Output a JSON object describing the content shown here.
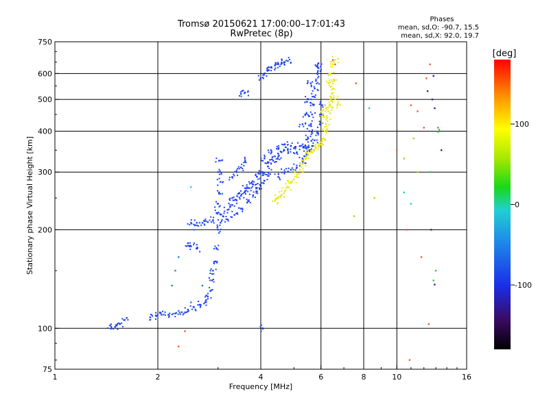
{
  "chart_data": {
    "type": "scatter",
    "title": "Tromsø 20150621 17:00:00–17:01:43",
    "subtitle": "RwPretec (8p)",
    "xlabel": "Frequency [MHz]",
    "ylabel": "Stationary phase Virtual Height [km]",
    "x_scale": "log",
    "y_scale": "log",
    "xlim": [
      1,
      16
    ],
    "ylim": [
      75,
      750
    ],
    "x_ticks": [
      1,
      2,
      4,
      6,
      8,
      10,
      16
    ],
    "y_ticks": [
      75,
      100,
      200,
      300,
      400,
      500,
      600,
      750
    ],
    "grid": true,
    "stats": {
      "heading": "Phases",
      "line_o": "mean, sd,O: -90.7, 15.5",
      "line_x": "mean, sd,X:  92.0, 19.7"
    },
    "colorbar": {
      "label": "[deg]",
      "range": [
        -180,
        180
      ],
      "ticks": [
        100,
        0,
        -100
      ]
    },
    "series": [
      {
        "phase_deg": -95,
        "color": "#1a3df0",
        "points": [
          [
            1.45,
            102
          ],
          [
            1.5,
            101
          ],
          [
            1.55,
            103
          ],
          [
            1.6,
            106
          ],
          [
            1.9,
            108
          ],
          [
            1.98,
            109
          ],
          [
            2.05,
            110
          ],
          [
            2.15,
            110
          ],
          [
            2.25,
            111
          ],
          [
            2.35,
            112
          ],
          [
            2.45,
            114
          ],
          [
            2.55,
            116
          ],
          [
            2.65,
            118
          ],
          [
            2.75,
            120
          ],
          [
            2.8,
            125
          ],
          [
            2.85,
            130
          ],
          [
            2.88,
            140
          ],
          [
            2.9,
            150
          ],
          [
            2.95,
            160
          ],
          [
            2.97,
            175
          ],
          [
            2.6,
            175
          ],
          [
            2.5,
            178
          ],
          [
            2.45,
            182
          ],
          [
            2.5,
            210
          ],
          [
            2.6,
            210
          ],
          [
            2.7,
            210
          ],
          [
            2.8,
            211
          ],
          [
            2.9,
            214
          ],
          [
            2.97,
            225
          ],
          [
            3.0,
            240
          ],
          [
            3.02,
            260
          ],
          [
            3.05,
            280
          ],
          [
            3.0,
            300
          ],
          [
            3.02,
            325
          ],
          [
            3.0,
            200
          ],
          [
            3.05,
            210
          ],
          [
            3.1,
            220
          ],
          [
            3.2,
            230
          ],
          [
            3.3,
            238
          ],
          [
            3.4,
            246
          ],
          [
            3.5,
            254
          ],
          [
            3.6,
            262
          ],
          [
            3.7,
            268
          ],
          [
            3.8,
            275
          ],
          [
            3.2,
            215
          ],
          [
            3.35,
            222
          ],
          [
            3.5,
            232
          ],
          [
            3.65,
            242
          ],
          [
            3.8,
            255
          ],
          [
            3.9,
            262
          ],
          [
            4.0,
            272
          ],
          [
            4.1,
            282
          ],
          [
            4.2,
            292
          ],
          [
            3.3,
            250
          ],
          [
            3.45,
            258
          ],
          [
            3.6,
            268
          ],
          [
            3.75,
            278
          ],
          [
            3.9,
            290
          ],
          [
            4.05,
            300
          ],
          [
            4.2,
            312
          ],
          [
            4.35,
            325
          ],
          [
            4.5,
            335
          ],
          [
            4.0,
            300
          ],
          [
            4.2,
            320
          ],
          [
            4.4,
            335
          ],
          [
            4.6,
            345
          ],
          [
            4.8,
            350
          ],
          [
            5.0,
            355
          ],
          [
            5.2,
            360
          ],
          [
            5.4,
            362
          ],
          [
            4.1,
            330
          ],
          [
            4.3,
            345
          ],
          [
            4.5,
            355
          ],
          [
            4.7,
            365
          ],
          [
            4.9,
            360
          ],
          [
            5.1,
            345
          ],
          [
            5.3,
            330
          ],
          [
            4.5,
            290
          ],
          [
            4.7,
            300
          ],
          [
            4.9,
            305
          ],
          [
            5.1,
            310
          ],
          [
            5.3,
            318
          ],
          [
            5.4,
            360
          ],
          [
            5.5,
            380
          ],
          [
            5.55,
            400
          ],
          [
            5.6,
            420
          ],
          [
            5.65,
            450
          ],
          [
            5.7,
            480
          ],
          [
            5.72,
            510
          ],
          [
            5.75,
            540
          ],
          [
            5.8,
            570
          ],
          [
            5.85,
            600
          ],
          [
            5.88,
            625
          ],
          [
            5.9,
            645
          ],
          [
            5.45,
            340
          ],
          [
            5.55,
            350
          ],
          [
            5.65,
            360
          ],
          [
            5.75,
            375
          ],
          [
            5.85,
            395
          ],
          [
            5.95,
            420
          ],
          [
            6.0,
            450
          ],
          [
            6.05,
            480
          ],
          [
            5.3,
            420
          ],
          [
            5.4,
            450
          ],
          [
            5.5,
            500
          ],
          [
            5.6,
            560
          ],
          [
            3.5,
            520
          ],
          [
            3.6,
            525
          ],
          [
            4.0,
            580
          ],
          [
            4.1,
            600
          ],
          [
            4.2,
            615
          ],
          [
            4.3,
            625
          ],
          [
            4.4,
            635
          ],
          [
            4.5,
            640
          ],
          [
            4.6,
            645
          ],
          [
            4.7,
            650
          ],
          [
            4.8,
            655
          ],
          [
            4.05,
            100
          ],
          [
            3.3,
            290
          ],
          [
            3.4,
            300
          ],
          [
            3.5,
            310
          ],
          [
            3.6,
            325
          ]
        ]
      },
      {
        "phase_deg": -70,
        "color": "#1e7fe6",
        "points": [
          [
            2.1,
            112
          ],
          [
            2.3,
            113
          ],
          [
            2.5,
            120
          ],
          [
            2.7,
            135
          ],
          [
            2.85,
            150
          ],
          [
            2.6,
            180
          ],
          [
            2.55,
            200
          ],
          [
            2.65,
            210
          ],
          [
            2.2,
            135
          ],
          [
            2.25,
            150
          ],
          [
            2.3,
            165
          ]
        ]
      },
      {
        "phase_deg": 100,
        "color": "#e8e800",
        "points": [
          [
            4.4,
            245
          ],
          [
            4.5,
            250
          ],
          [
            4.6,
            255
          ],
          [
            4.7,
            262
          ],
          [
            4.8,
            270
          ],
          [
            4.9,
            278
          ],
          [
            5.0,
            285
          ],
          [
            5.1,
            295
          ],
          [
            5.2,
            305
          ],
          [
            5.3,
            318
          ],
          [
            5.4,
            328
          ],
          [
            5.5,
            338
          ],
          [
            5.6,
            345
          ],
          [
            5.7,
            350
          ],
          [
            5.8,
            355
          ],
          [
            5.9,
            362
          ],
          [
            6.0,
            370
          ],
          [
            6.1,
            380
          ],
          [
            6.15,
            400
          ],
          [
            6.2,
            420
          ],
          [
            6.25,
            440
          ],
          [
            6.3,
            460
          ],
          [
            6.35,
            480
          ],
          [
            6.4,
            500
          ],
          [
            6.45,
            520
          ],
          [
            6.5,
            540
          ],
          [
            6.55,
            570
          ],
          [
            6.3,
            560
          ],
          [
            6.4,
            600
          ],
          [
            6.5,
            640
          ],
          [
            6.6,
            660
          ],
          [
            6.1,
            450
          ],
          [
            6.2,
            470
          ],
          [
            6.6,
            500
          ],
          [
            6.7,
            480
          ]
        ]
      },
      {
        "phase_deg": 160,
        "color": "#f05a1e",
        "points": [
          [
            6.5,
            660
          ],
          [
            6.6,
            640
          ],
          [
            7.6,
            560
          ],
          [
            10.0,
            350
          ],
          [
            10.7,
            200
          ],
          [
            11.0,
            480
          ],
          [
            11.5,
            460
          ],
          [
            12.0,
            410
          ],
          [
            12.5,
            640
          ],
          [
            12.2,
            580
          ],
          [
            13.2,
            410
          ],
          [
            11.8,
            165
          ],
          [
            12.4,
            103
          ],
          [
            10.9,
            80
          ],
          [
            2.3,
            88
          ],
          [
            2.4,
            98
          ]
        ]
      },
      {
        "phase_deg": 20,
        "color": "#22c84a",
        "points": [
          [
            13.2,
            398
          ],
          [
            13.3,
            404
          ],
          [
            13.0,
            150
          ],
          [
            12.8,
            140
          ],
          [
            12.6,
            300
          ]
        ]
      },
      {
        "phase_deg": 50,
        "color": "#9be000",
        "points": [
          [
            8.6,
            250
          ],
          [
            7.5,
            220
          ],
          [
            10.5,
            330
          ],
          [
            11.2,
            380
          ],
          [
            11.5,
            300
          ]
        ]
      },
      {
        "phase_deg": -140,
        "color": "#3a1a8a",
        "points": [
          [
            12.8,
            590
          ],
          [
            12.7,
            500
          ],
          [
            12.9,
            470
          ],
          [
            12.6,
            200
          ],
          [
            12.9,
            136
          ],
          [
            13.5,
            350
          ],
          [
            12.3,
            530
          ]
        ]
      },
      {
        "phase_deg": -20,
        "color": "#1ad0d0",
        "points": [
          [
            8.3,
            470
          ],
          [
            10.5,
            260
          ],
          [
            11.0,
            240
          ],
          [
            2.5,
            270
          ]
        ]
      }
    ]
  }
}
